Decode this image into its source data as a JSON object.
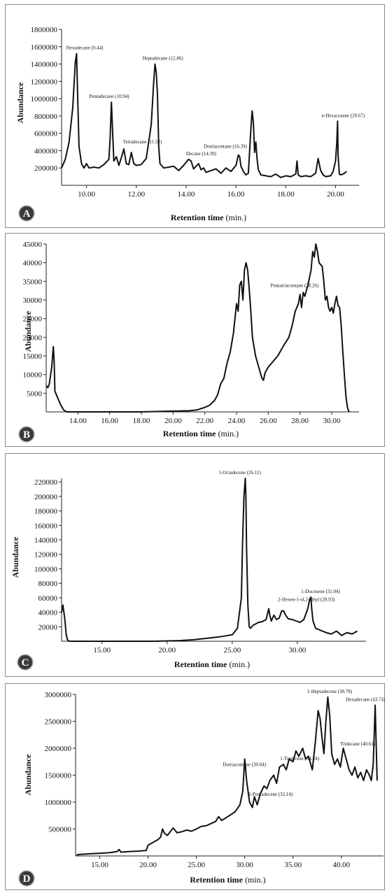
{
  "chart_data": [
    {
      "id": "A",
      "type": "line",
      "panel_label": "A",
      "xlabel": "Retention time",
      "xunit": "(min.)",
      "ylabel": "Abundance",
      "xlim": [
        9.0,
        20.8
      ],
      "ylim": [
        0,
        1800000
      ],
      "xticks": [
        {
          "v": 10,
          "t": "10.00"
        },
        {
          "v": 12,
          "t": "12.00"
        },
        {
          "v": 14,
          "t": "14.00"
        },
        {
          "v": 16,
          "t": "16.00"
        },
        {
          "v": 18,
          "t": "18.00"
        },
        {
          "v": 20,
          "t": "20.00"
        }
      ],
      "yticks": [
        {
          "v": 200000,
          "t": "200000"
        },
        {
          "v": 400000,
          "t": "400000"
        },
        {
          "v": 600000,
          "t": "600000"
        },
        {
          "v": 800000,
          "t": "800000"
        },
        {
          "v": 1000000,
          "t": "1000000"
        },
        {
          "v": 1200000,
          "t": "1200000"
        },
        {
          "v": 1400000,
          "t": "1400000"
        },
        {
          "v": 1600000,
          "t": "1600000"
        },
        {
          "v": 1800000,
          "t": "1800000"
        }
      ],
      "series": [
        {
          "x": [
            9.0,
            9.15,
            9.3,
            9.45,
            9.55,
            9.6,
            9.62,
            9.7,
            9.8,
            9.9,
            10.0,
            10.1,
            10.3,
            10.5,
            10.7,
            10.9,
            10.95,
            11.0,
            11.05,
            11.1,
            11.2,
            11.3,
            11.4,
            11.5,
            11.6,
            11.7,
            11.8,
            11.9,
            12.0,
            12.2,
            12.4,
            12.6,
            12.7,
            12.75,
            12.8,
            12.85,
            12.9,
            12.95,
            13.1,
            13.3,
            13.5,
            13.7,
            13.9,
            14.1,
            14.2,
            14.3,
            14.4,
            14.5,
            14.6,
            14.7,
            14.8,
            15.0,
            15.2,
            15.4,
            15.6,
            15.8,
            16.0,
            16.1,
            16.15,
            16.2,
            16.3,
            16.4,
            16.5,
            16.6,
            16.65,
            16.7,
            16.75,
            16.8,
            16.85,
            16.9,
            17.0,
            17.2,
            17.4,
            17.6,
            17.8,
            18.0,
            18.2,
            18.4,
            18.45,
            18.5,
            18.6,
            18.8,
            19.0,
            19.2,
            19.3,
            19.4,
            19.5,
            19.6,
            19.8,
            19.9,
            20.0,
            20.05,
            20.08,
            20.1,
            20.15,
            20.2,
            20.3,
            20.45
          ],
          "y": [
            200000,
            300000,
            500000,
            900000,
            1420000,
            1520000,
            1300000,
            450000,
            250000,
            200000,
            250000,
            200000,
            210000,
            200000,
            240000,
            300000,
            550000,
            960000,
            600000,
            280000,
            330000,
            230000,
            320000,
            420000,
            250000,
            240000,
            380000,
            250000,
            230000,
            240000,
            310000,
            700000,
            1200000,
            1400000,
            1300000,
            1050000,
            450000,
            250000,
            200000,
            210000,
            220000,
            170000,
            230000,
            300000,
            280000,
            190000,
            220000,
            250000,
            180000,
            200000,
            150000,
            170000,
            190000,
            140000,
            200000,
            160000,
            230000,
            350000,
            330000,
            220000,
            160000,
            120000,
            140000,
            650000,
            860000,
            720000,
            380000,
            500000,
            300000,
            180000,
            120000,
            110000,
            100000,
            130000,
            90000,
            110000,
            100000,
            130000,
            280000,
            120000,
            100000,
            110000,
            100000,
            140000,
            310000,
            170000,
            120000,
            100000,
            110000,
            160000,
            280000,
            500000,
            740000,
            350000,
            130000,
            120000,
            130000,
            160000
          ]
        }
      ],
      "annotations": [
        {
          "text": "Hexadecane (9.44)",
          "x": 9.55,
          "y": 1520000
        },
        {
          "text": "Pentadecane (10.94)",
          "x": 10.95,
          "y": 960000
        },
        {
          "text": "Tetradecane (11.52)",
          "x": 11.52,
          "y": 420000
        },
        {
          "text": "Heptadecane (12.86)",
          "x": 12.86,
          "y": 1400000
        },
        {
          "text": "Decane (14.39)",
          "x": 14.39,
          "y": 300000
        },
        {
          "text": "Dotriacontane (16.39)",
          "x": 16.39,
          "y": 350000
        },
        {
          "text": "n-Hexacosane (20.67)",
          "x": 20.67,
          "y": 740000
        }
      ]
    },
    {
      "id": "B",
      "type": "line",
      "panel_label": "B",
      "xlabel": "Retention time",
      "xunit": "(min.)",
      "ylabel": "Abundance",
      "xlim": [
        12.0,
        31.5
      ],
      "ylim": [
        0,
        45000
      ],
      "xticks": [
        {
          "v": 14,
          "t": "14.00"
        },
        {
          "v": 16,
          "t": "16.00"
        },
        {
          "v": 18,
          "t": "18.00"
        },
        {
          "v": 20,
          "t": "20.00"
        },
        {
          "v": 22,
          "t": "22.00"
        },
        {
          "v": 24,
          "t": "24.00"
        },
        {
          "v": 26,
          "t": "26.00"
        },
        {
          "v": 28,
          "t": "28.00"
        },
        {
          "v": 30,
          "t": "30.00"
        }
      ],
      "yticks": [
        {
          "v": 5000,
          "t": "5000"
        },
        {
          "v": 10000,
          "t": "10000"
        },
        {
          "v": 15000,
          "t": "15000"
        },
        {
          "v": 20000,
          "t": "20000"
        },
        {
          "v": 25000,
          "t": "25000"
        },
        {
          "v": 30000,
          "t": "30000"
        },
        {
          "v": 35000,
          "t": "35000"
        },
        {
          "v": 40000,
          "t": "40000"
        },
        {
          "v": 45000,
          "t": "45000"
        }
      ],
      "series": [
        {
          "x": [
            12.0,
            12.1,
            12.2,
            12.35,
            12.45,
            12.5,
            12.55,
            12.7,
            12.9,
            13.1,
            13.3,
            14.0,
            16.0,
            18.0,
            20.0,
            21.0,
            21.5,
            22.0,
            22.3,
            22.6,
            22.8,
            23.0,
            23.2,
            23.4,
            23.6,
            23.8,
            24.0,
            24.1,
            24.2,
            24.3,
            24.4,
            24.5,
            24.6,
            24.7,
            24.8,
            24.9,
            25.0,
            25.2,
            25.4,
            25.6,
            25.7,
            25.8,
            26.0,
            26.3,
            26.6,
            27.0,
            27.3,
            27.5,
            27.7,
            27.9,
            28.0,
            28.1,
            28.2,
            28.3,
            28.5,
            28.7,
            28.8,
            28.9,
            29.0,
            29.1,
            29.2,
            29.3,
            29.4,
            29.5,
            29.6,
            29.7,
            29.8,
            29.9,
            30.0,
            30.1,
            30.2,
            30.3,
            30.4,
            30.5,
            30.6,
            30.7,
            30.8,
            30.9,
            31.0,
            31.1
          ],
          "y": [
            7000,
            6500,
            7500,
            12000,
            17500,
            14000,
            5500,
            4000,
            2000,
            500,
            0,
            0,
            0,
            0,
            200,
            300,
            500,
            1200,
            1800,
            3000,
            4500,
            7500,
            9000,
            13000,
            16000,
            21000,
            29000,
            27000,
            34000,
            35000,
            30000,
            38000,
            40000,
            38000,
            33000,
            27000,
            20000,
            15000,
            12000,
            9000,
            8500,
            10500,
            12000,
            13500,
            15000,
            18000,
            20000,
            23000,
            27000,
            29000,
            31500,
            28000,
            32000,
            31000,
            34000,
            38000,
            43000,
            41500,
            45000,
            43000,
            40000,
            39500,
            39000,
            35000,
            30000,
            31000,
            28000,
            27000,
            28000,
            26500,
            29000,
            31000,
            28500,
            28000,
            23000,
            16000,
            10000,
            4000,
            1000,
            0
          ]
        }
      ],
      "annotations": [
        {
          "text": "Pentatriacontane (28.26)",
          "x": 28.26,
          "y": 32000
        }
      ]
    },
    {
      "id": "C",
      "type": "line",
      "panel_label": "C",
      "xlabel": "Retention time",
      "xunit": "(min.)",
      "ylabel": "Abundance",
      "xlim": [
        11.9,
        35.0
      ],
      "ylim": [
        0,
        225000
      ],
      "xticks": [
        {
          "v": 15,
          "t": "15.00"
        },
        {
          "v": 20,
          "t": "20.00"
        },
        {
          "v": 25,
          "t": "25.00"
        },
        {
          "v": 30,
          "t": "30.00"
        }
      ],
      "yticks": [
        {
          "v": 20000,
          "t": "20000"
        },
        {
          "v": 40000,
          "t": "40000"
        },
        {
          "v": 60000,
          "t": "60000"
        },
        {
          "v": 80000,
          "t": "80000"
        },
        {
          "v": 100000,
          "t": "100000"
        },
        {
          "v": 120000,
          "t": "120000"
        },
        {
          "v": 140000,
          "t": "140000"
        },
        {
          "v": 160000,
          "t": "160000"
        },
        {
          "v": 180000,
          "t": "180000"
        },
        {
          "v": 200000,
          "t": "200000"
        },
        {
          "v": 220000,
          "t": "220000"
        }
      ],
      "series": [
        {
          "x": [
            11.9,
            12.0,
            12.15,
            12.25,
            12.35,
            12.5,
            13.0,
            15.0,
            17.0,
            19.0,
            21.0,
            22.0,
            23.0,
            24.0,
            24.5,
            25.0,
            25.4,
            25.7,
            25.8,
            25.9,
            26.0,
            26.05,
            26.1,
            26.2,
            26.3,
            26.4,
            26.6,
            27.0,
            27.3,
            27.6,
            27.8,
            27.9,
            28.0,
            28.2,
            28.4,
            28.6,
            28.8,
            28.93,
            29.1,
            29.3,
            29.6,
            29.9,
            30.2,
            30.5,
            30.8,
            30.95,
            31.04,
            31.1,
            31.2,
            31.4,
            31.8,
            32.2,
            32.6,
            33.0,
            33.4,
            33.8,
            34.2,
            34.6
          ],
          "y": [
            40000,
            50000,
            30000,
            10000,
            2000,
            0,
            0,
            0,
            0,
            0,
            1000,
            2000,
            4000,
            6000,
            7500,
            9000,
            18000,
            60000,
            140000,
            200000,
            225000,
            200000,
            130000,
            50000,
            20000,
            18000,
            22000,
            26000,
            27000,
            30000,
            45000,
            35000,
            28000,
            36000,
            30000,
            32000,
            42000,
            42000,
            36000,
            31000,
            30000,
            28000,
            26000,
            30000,
            45000,
            58000,
            61000,
            45000,
            28000,
            18000,
            15000,
            12000,
            10000,
            14000,
            8000,
            12000,
            10000,
            14000
          ]
        }
      ],
      "annotations": [
        {
          "text": "1-Octadecene (26.11)",
          "x": 26.11,
          "y": 225000
        },
        {
          "text": "1-Docosene (31.04)",
          "x": 31.04,
          "y": 61000
        },
        {
          "text": "2-Hexen-1-ol,2-ethyl (28.93)",
          "x": 28.93,
          "y": 42000
        }
      ]
    },
    {
      "id": "D",
      "type": "line",
      "panel_label": "D",
      "xlabel": "Retention time",
      "xunit": "(min.)",
      "ylabel": "Abundance",
      "xlim": [
        12.5,
        44.0
      ],
      "ylim": [
        0,
        3000000
      ],
      "xticks": [
        {
          "v": 15,
          "t": "15.00"
        },
        {
          "v": 20,
          "t": "20.00"
        },
        {
          "v": 25,
          "t": "25.00"
        },
        {
          "v": 30,
          "t": "30.00"
        },
        {
          "v": 35,
          "t": "35.00"
        },
        {
          "v": 40,
          "t": "40.00"
        }
      ],
      "yticks": [
        {
          "v": 500000,
          "t": "500000"
        },
        {
          "v": 1000000,
          "t": "1000000"
        },
        {
          "v": 1500000,
          "t": "1500000"
        },
        {
          "v": 2000000,
          "t": "2000000"
        },
        {
          "v": 2500000,
          "t": "2500000"
        },
        {
          "v": 3000000,
          "t": "3000000"
        }
      ],
      "series": [
        {
          "x": [
            12.6,
            13.0,
            14.0,
            15.0,
            16.0,
            16.8,
            17.0,
            17.2,
            18.0,
            19.0,
            19.8,
            20.0,
            20.5,
            21.0,
            21.3,
            21.5,
            21.7,
            22.0,
            22.3,
            22.6,
            23.0,
            23.5,
            24.0,
            24.5,
            25.0,
            25.5,
            26.0,
            26.5,
            27.0,
            27.3,
            27.6,
            28.0,
            28.5,
            29.0,
            29.5,
            29.8,
            30.0,
            30.2,
            30.5,
            30.8,
            31.0,
            31.3,
            31.6,
            32.0,
            32.3,
            32.6,
            33.0,
            33.3,
            33.6,
            34.0,
            34.3,
            34.6,
            35.0,
            35.3,
            35.6,
            36.0,
            36.3,
            36.6,
            37.0,
            37.3,
            37.6,
            37.8,
            38.0,
            38.2,
            38.4,
            38.6,
            38.8,
            39.0,
            39.3,
            39.6,
            39.9,
            40.2,
            40.5,
            40.8,
            41.1,
            41.4,
            41.7,
            42.0,
            42.3,
            42.6,
            42.9,
            43.1,
            43.3,
            43.5,
            43.7
          ],
          "y": [
            20000,
            30000,
            40000,
            50000,
            60000,
            80000,
            120000,
            70000,
            80000,
            90000,
            100000,
            200000,
            250000,
            300000,
            350000,
            500000,
            420000,
            380000,
            450000,
            520000,
            430000,
            450000,
            480000,
            460000,
            500000,
            550000,
            560000,
            600000,
            640000,
            730000,
            660000,
            700000,
            760000,
            820000,
            950000,
            1200000,
            1800000,
            1400000,
            1000000,
            900000,
            1100000,
            950000,
            1150000,
            1300000,
            1250000,
            1400000,
            1500000,
            1350000,
            1650000,
            1700000,
            1600000,
            1800000,
            1750000,
            1950000,
            1850000,
            2000000,
            1800000,
            1850000,
            1600000,
            2100000,
            2700000,
            2550000,
            2200000,
            1900000,
            2500000,
            2950000,
            2600000,
            1900000,
            1700000,
            1800000,
            1650000,
            2000000,
            1800000,
            1600000,
            1500000,
            1650000,
            1450000,
            1550000,
            1400000,
            1600000,
            1500000,
            1400000,
            1700000,
            2800000,
            1400000
          ]
        }
      ],
      "annotations": [
        {
          "text": "1-Heptadecene (38.78)",
          "x": 38.78,
          "y": 2950000
        },
        {
          "text": "Hexadecane (43.74)",
          "x": 43.5,
          "y": 2800000
        },
        {
          "text": "Tridecane (40.61)",
          "x": 40.61,
          "y": 2000000
        },
        {
          "text": "1-Tridecene (34.24)",
          "x": 34.24,
          "y": 1700000
        },
        {
          "text": "Dotriacontane (30.04)",
          "x": 30.04,
          "y": 1800000
        },
        {
          "text": "1-Pentadecene (32.14)",
          "x": 32.14,
          "y": 1300000
        }
      ]
    }
  ]
}
